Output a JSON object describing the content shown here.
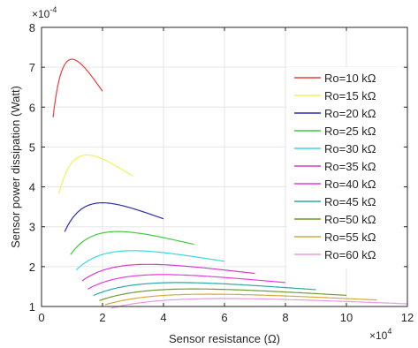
{
  "chart_data": {
    "type": "line",
    "xlabel": "Sensor resistance (Ω)",
    "ylabel": "Sensor power dissipation (Watt)",
    "xlim": [
      0,
      120000
    ],
    "ylim": [
      0.0001,
      0.0008
    ],
    "x_exponent_label": "×10",
    "x_exponent_power": "4",
    "y_exponent_label": "×10",
    "y_exponent_power": "-4",
    "x_ticks": [
      0,
      20000,
      40000,
      60000,
      80000,
      100000,
      120000
    ],
    "x_tick_labels": [
      "0",
      "2",
      "4",
      "6",
      "8",
      "10",
      "12"
    ],
    "y_ticks": [
      0.0001,
      0.0002,
      0.0003,
      0.0004,
      0.0005,
      0.0006,
      0.0007,
      0.0008
    ],
    "y_tick_labels": [
      "1",
      "2",
      "3",
      "4",
      "5",
      "6",
      "7",
      "8"
    ],
    "grid": true,
    "legend_position": "right",
    "series": [
      {
        "name": "Ro=10 kΩ",
        "color": "#e8403a",
        "Ro": 10000,
        "x_range": [
          4000,
          20000
        ]
      },
      {
        "name": "Ro=15 kΩ",
        "color": "#f2f25a",
        "Ro": 15000,
        "x_range": [
          6000,
          30000
        ]
      },
      {
        "name": "Ro=20 kΩ",
        "color": "#2a2ea8",
        "Ro": 20000,
        "x_range": [
          8000,
          40000
        ]
      },
      {
        "name": "Ro=25 kΩ",
        "color": "#3ccc3c",
        "Ro": 25000,
        "x_range": [
          10000,
          50000
        ]
      },
      {
        "name": "Ro=30 kΩ",
        "color": "#3cd8e0",
        "Ro": 30000,
        "x_range": [
          12000,
          60000
        ]
      },
      {
        "name": "Ro=35 kΩ",
        "color": "#d23cc8",
        "Ro": 35000,
        "x_range": [
          14000,
          70000
        ]
      },
      {
        "name": "Ro=40 kΩ",
        "color": "#e43ce4",
        "Ro": 40000,
        "x_range": [
          16000,
          80000
        ]
      },
      {
        "name": "Ro=45 kΩ",
        "color": "#2aa8a8",
        "Ro": 45000,
        "x_range": [
          18000,
          90000
        ]
      },
      {
        "name": "Ro=50 kΩ",
        "color": "#6e9c32",
        "Ro": 50000,
        "x_range": [
          20000,
          100000
        ]
      },
      {
        "name": "Ro=55 kΩ",
        "color": "#d8a83c",
        "Ro": 55000,
        "x_range": [
          22000,
          110000
        ]
      },
      {
        "name": "Ro=60 kΩ",
        "color": "#e89ce4",
        "Ro": 60000,
        "x_range": [
          24000,
          120000
        ]
      }
    ]
  }
}
